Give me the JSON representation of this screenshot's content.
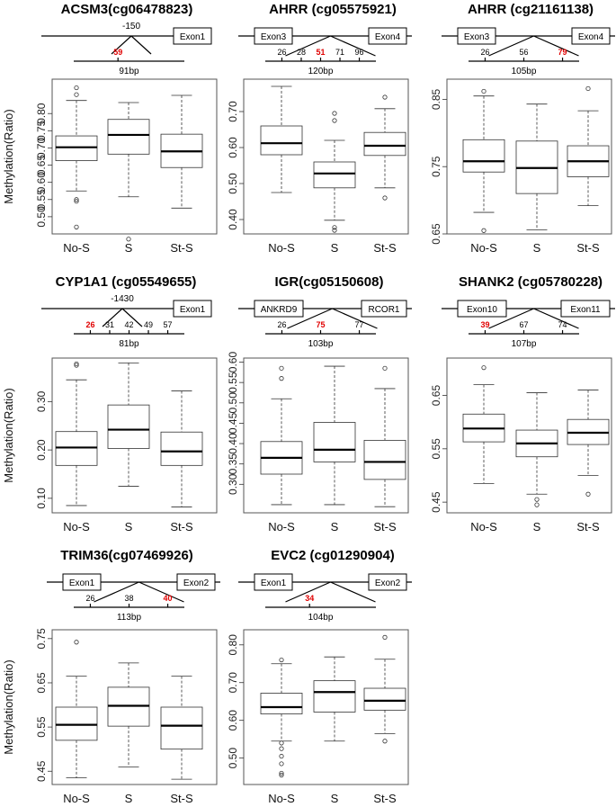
{
  "chart_data": [
    {
      "type": "box",
      "title": "ACSM3(cg06478823)",
      "ylabel": "Methylation(Ratio)",
      "ylim": [
        0.45,
        0.9
      ],
      "yticks": [
        "0.50",
        "0.55",
        "0.60",
        "0.65",
        "0.70",
        "0.75",
        "0.80"
      ],
      "gene": {
        "upstream_label": "-150",
        "exons": [
          "Exon1"
        ],
        "positions": [
          {
            "label": "59",
            "highlight": true
          }
        ],
        "amplicon": "91bp"
      },
      "categories": [
        "No-S",
        "S",
        "St-S"
      ],
      "boxes": [
        {
          "whislo": 0.575,
          "q1": 0.663,
          "med": 0.702,
          "q3": 0.735,
          "whishi": 0.838,
          "fliers": [
            0.47,
            0.545,
            0.55,
            0.855,
            0.875
          ]
        },
        {
          "whislo": 0.558,
          "q1": 0.682,
          "med": 0.738,
          "q3": 0.783,
          "whishi": 0.832,
          "fliers": [
            0.435
          ]
        },
        {
          "whislo": 0.525,
          "q1": 0.643,
          "med": 0.69,
          "q3": 0.74,
          "whishi": 0.853,
          "fliers": []
        }
      ]
    },
    {
      "type": "box",
      "title": "AHRR (cg05575921)",
      "ylabel": "",
      "ylim": [
        0.36,
        0.79
      ],
      "yticks": [
        "0.40",
        "0.50",
        "0.60",
        "0.70"
      ],
      "gene": {
        "upstream_label": "",
        "exons": [
          "Exon3",
          "Exon4"
        ],
        "positions": [
          {
            "label": "26",
            "highlight": false
          },
          {
            "label": "28",
            "highlight": false
          },
          {
            "label": "51",
            "highlight": true
          },
          {
            "label": "71",
            "highlight": false
          },
          {
            "label": "96",
            "highlight": false
          }
        ],
        "amplicon": "120bp"
      },
      "categories": [
        "No-S",
        "S",
        "St-S"
      ],
      "boxes": [
        {
          "whislo": 0.475,
          "q1": 0.58,
          "med": 0.612,
          "q3": 0.66,
          "whishi": 0.77,
          "fliers": []
        },
        {
          "whislo": 0.398,
          "q1": 0.488,
          "med": 0.528,
          "q3": 0.56,
          "whishi": 0.62,
          "fliers": [
            0.37,
            0.378,
            0.675,
            0.695
          ]
        },
        {
          "whislo": 0.488,
          "q1": 0.578,
          "med": 0.605,
          "q3": 0.642,
          "whishi": 0.708,
          "fliers": [
            0.46,
            0.74
          ]
        }
      ]
    },
    {
      "type": "box",
      "title": "AHRR (cg21161138)",
      "ylabel": "",
      "ylim": [
        0.65,
        0.88
      ],
      "yticks": [
        "0.65",
        "0.75",
        "0.85"
      ],
      "gene": {
        "upstream_label": "",
        "exons": [
          "Exon3",
          "Exon4"
        ],
        "positions": [
          {
            "label": "26",
            "highlight": false
          },
          {
            "label": "56",
            "highlight": false
          },
          {
            "label": "79",
            "highlight": true
          }
        ],
        "amplicon": "105bp"
      },
      "categories": [
        "No-S",
        "S",
        "St-S"
      ],
      "boxes": [
        {
          "whislo": 0.682,
          "q1": 0.742,
          "med": 0.758,
          "q3": 0.79,
          "whishi": 0.855,
          "fliers": [
            0.655,
            0.862
          ]
        },
        {
          "whislo": 0.656,
          "q1": 0.71,
          "med": 0.748,
          "q3": 0.788,
          "whishi": 0.843,
          "fliers": []
        },
        {
          "whislo": 0.692,
          "q1": 0.735,
          "med": 0.758,
          "q3": 0.781,
          "whishi": 0.833,
          "fliers": [
            0.866
          ]
        }
      ]
    },
    {
      "type": "box",
      "title": "CYP1A1 (cg05549655)",
      "ylabel": "Methylation(Ratio)",
      "ylim": [
        0.07,
        0.39
      ],
      "yticks": [
        "0.10",
        "0.20",
        "0.30"
      ],
      "gene": {
        "upstream_label": "-1430",
        "exons": [
          "Exon1"
        ],
        "positions": [
          {
            "label": "26",
            "highlight": true
          },
          {
            "label": "31",
            "highlight": false
          },
          {
            "label": "42",
            "highlight": false
          },
          {
            "label": "49",
            "highlight": false
          },
          {
            "label": "57",
            "highlight": false
          }
        ],
        "amplicon": "81bp"
      },
      "categories": [
        "No-S",
        "S",
        "St-S"
      ],
      "boxes": [
        {
          "whislo": 0.085,
          "q1": 0.168,
          "med": 0.205,
          "q3": 0.238,
          "whishi": 0.345,
          "fliers": [
            0.375,
            0.378
          ]
        },
        {
          "whislo": 0.125,
          "q1": 0.203,
          "med": 0.242,
          "q3": 0.293,
          "whishi": 0.38,
          "fliers": []
        },
        {
          "whislo": 0.082,
          "q1": 0.168,
          "med": 0.197,
          "q3": 0.237,
          "whishi": 0.322,
          "fliers": []
        }
      ]
    },
    {
      "type": "box",
      "title": "IGR(cg05150608)",
      "ylabel": "",
      "ylim": [
        0.23,
        0.61
      ],
      "yticks": [
        "0.30",
        "0.35",
        "0.40",
        "0.45",
        "0.50",
        "0.55",
        "0.60"
      ],
      "gene": {
        "upstream_label": "",
        "exons": [
          "ANKRD9",
          "RCOR1"
        ],
        "positions": [
          {
            "label": "26",
            "highlight": false
          },
          {
            "label": "75",
            "highlight": true
          },
          {
            "label": "77",
            "highlight": false
          }
        ],
        "amplicon": "103bp"
      },
      "categories": [
        "No-S",
        "S",
        "St-S"
      ],
      "boxes": [
        {
          "whislo": 0.25,
          "q1": 0.325,
          "med": 0.365,
          "q3": 0.405,
          "whishi": 0.51,
          "fliers": [
            0.56,
            0.585
          ]
        },
        {
          "whislo": 0.25,
          "q1": 0.355,
          "med": 0.385,
          "q3": 0.452,
          "whishi": 0.59,
          "fliers": []
        },
        {
          "whislo": 0.245,
          "q1": 0.312,
          "med": 0.355,
          "q3": 0.408,
          "whishi": 0.535,
          "fliers": [
            0.585
          ]
        }
      ]
    },
    {
      "type": "box",
      "title": "SHANK2 (cg05780228)",
      "ylabel": "",
      "ylim": [
        0.43,
        0.72
      ],
      "yticks": [
        "0.45",
        "0.55",
        "0.65"
      ],
      "gene": {
        "upstream_label": "",
        "exons": [
          "Exon10",
          "Exon11"
        ],
        "positions": [
          {
            "label": "39",
            "highlight": true
          },
          {
            "label": "67",
            "highlight": false
          },
          {
            "label": "74",
            "highlight": false
          }
        ],
        "amplicon": "107bp"
      },
      "categories": [
        "No-S",
        "S",
        "St-S"
      ],
      "boxes": [
        {
          "whislo": 0.485,
          "q1": 0.563,
          "med": 0.588,
          "q3": 0.615,
          "whishi": 0.67,
          "fliers": [
            0.702
          ]
        },
        {
          "whislo": 0.465,
          "q1": 0.535,
          "med": 0.56,
          "q3": 0.585,
          "whishi": 0.655,
          "fliers": [
            0.445,
            0.455
          ]
        },
        {
          "whislo": 0.5,
          "q1": 0.558,
          "med": 0.58,
          "q3": 0.605,
          "whishi": 0.66,
          "fliers": [
            0.465
          ]
        }
      ]
    },
    {
      "type": "box",
      "title": "TRIM36(cg07469926)",
      "ylabel": "Methylation(Ratio)",
      "ylim": [
        0.42,
        0.77
      ],
      "yticks": [
        "0.45",
        "0.55",
        "0.65",
        "0.75"
      ],
      "gene": {
        "upstream_label": "",
        "exons": [
          "Exon1",
          "Exon2"
        ],
        "positions": [
          {
            "label": "26",
            "highlight": false
          },
          {
            "label": "38",
            "highlight": false
          },
          {
            "label": "40",
            "highlight": true
          }
        ],
        "amplicon": "113bp"
      },
      "categories": [
        "No-S",
        "S",
        "St-S"
      ],
      "boxes": [
        {
          "whislo": 0.435,
          "q1": 0.52,
          "med": 0.555,
          "q3": 0.595,
          "whishi": 0.665,
          "fliers": [
            0.742
          ]
        },
        {
          "whislo": 0.46,
          "q1": 0.552,
          "med": 0.598,
          "q3": 0.64,
          "whishi": 0.695,
          "fliers": []
        },
        {
          "whislo": 0.432,
          "q1": 0.5,
          "med": 0.553,
          "q3": 0.595,
          "whishi": 0.665,
          "fliers": []
        }
      ]
    },
    {
      "type": "box",
      "title": "EVC2 (cg01290904)",
      "ylabel": "",
      "ylim": [
        0.43,
        0.84
      ],
      "yticks": [
        "0.50",
        "0.60",
        "0.70",
        "0.80"
      ],
      "gene": {
        "upstream_label": "",
        "exons": [
          "Exon1",
          "Exon2"
        ],
        "positions": [
          {
            "label": "34",
            "highlight": true
          }
        ],
        "amplicon": "104bp"
      },
      "categories": [
        "No-S",
        "S",
        "St-S"
      ],
      "boxes": [
        {
          "whislo": 0.545,
          "q1": 0.617,
          "med": 0.635,
          "q3": 0.672,
          "whishi": 0.75,
          "fliers": [
            0.455,
            0.46,
            0.485,
            0.505,
            0.525,
            0.54,
            0.76
          ]
        },
        {
          "whislo": 0.545,
          "q1": 0.622,
          "med": 0.675,
          "q3": 0.705,
          "whishi": 0.768,
          "fliers": []
        },
        {
          "whislo": 0.565,
          "q1": 0.627,
          "med": 0.652,
          "q3": 0.685,
          "whishi": 0.762,
          "fliers": [
            0.545,
            0.82
          ]
        }
      ]
    }
  ]
}
